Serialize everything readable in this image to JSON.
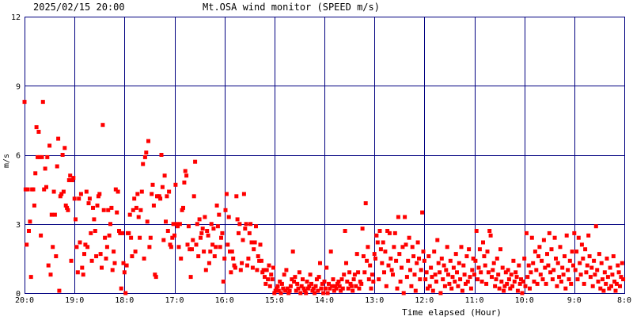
{
  "header": {
    "timestamp": "2025/02/15 20:00",
    "title": "Mt.OSA wind monitor (SPEED m/s)"
  },
  "chart_data": {
    "type": "scatter",
    "title": "Mt.OSA wind monitor (SPEED m/s)",
    "xlabel": "Time elapsed (Hour)",
    "ylabel": "m/s",
    "xlim": [
      0,
      12
    ],
    "ylim": [
      0,
      12
    ],
    "x_axis_reversed_labels": true,
    "x_tick_labels": [
      "20:0",
      "19:0",
      "18:0",
      "17:0",
      "16:0",
      "15:0",
      "14:0",
      "13:0",
      "12:0",
      "11:0",
      "10:0",
      "9:0",
      "8:0"
    ],
    "y_ticks": [
      0,
      3,
      6,
      9,
      12
    ],
    "grid": true,
    "colors": {
      "points": "#ff0000",
      "grid": "#000080",
      "text": "#000000",
      "background": "#ffffff"
    },
    "segments": [
      {
        "start_hour": 0,
        "values": [
          8.3,
          4.5,
          2.1,
          4.5,
          2.7,
          3.1,
          0.7,
          4.5,
          4.5,
          3.8,
          5.2,
          7.2,
          5.9,
          7.0,
          5.9,
          2.5,
          5.9,
          8.3,
          4.5,
          5.4,
          4.6,
          5.9,
          1.2,
          6.4,
          0.8,
          3.4,
          2.0,
          4.4,
          3.4,
          1.6,
          5.5,
          6.7,
          0.1,
          4.2,
          4.3,
          6.0,
          4.4,
          6.3,
          3.8,
          3.7,
          3.6,
          4.9,
          5.1,
          1.4,
          4.9,
          5.0
        ]
      },
      {
        "start_hour": 1,
        "values": [
          4.1,
          3.2,
          2.0,
          0.9,
          4.1,
          2.2,
          4.3,
          1.1,
          0.8,
          1.7,
          2.1,
          4.4,
          2.0,
          3.9,
          4.1,
          2.6,
          1.4,
          3.7,
          3.2,
          2.7,
          1.6,
          3.8,
          4.2,
          4.3,
          1.7,
          1.1,
          7.3,
          3.6,
          2.4,
          1.5,
          2.0,
          3.6,
          2.5,
          3.0,
          3.7,
          1.0,
          1.8,
          1.3,
          4.5,
          3.5,
          4.4,
          2.7,
          2.6,
          0.2,
          2.6,
          1.3
        ]
      },
      {
        "start_hour": 2,
        "values": [
          0.9,
          0.0,
          1.2,
          2.6,
          2.6,
          3.4,
          2.4,
          1.6,
          3.6,
          4.1,
          1.8,
          3.7,
          4.3,
          3.3,
          2.4,
          3.6,
          4.4,
          5.6,
          1.5,
          5.9,
          6.1,
          3.1,
          6.6,
          2.0,
          2.4,
          4.3,
          4.7,
          3.8,
          0.8,
          0.7,
          4.2,
          4.2,
          4.2,
          4.1,
          6.0,
          4.6,
          2.3,
          5.1,
          3.1,
          4.2,
          2.7,
          4.4,
          2.1,
          2.0,
          2.4,
          3.0
        ]
      },
      {
        "start_hour": 3,
        "values": [
          2.5,
          4.7,
          3.0,
          2.9,
          2.0,
          3.0,
          1.5,
          3.6,
          3.7,
          4.8,
          5.3,
          5.1,
          2.1,
          2.9,
          1.9,
          0.7,
          1.9,
          2.3,
          4.2,
          5.7,
          2.1,
          3.0,
          1.6,
          3.2,
          2.4,
          2.6,
          2.8,
          1.8,
          3.3,
          1.0,
          2.7,
          2.5,
          1.3,
          1.8,
          3.0,
          2.1,
          2.8,
          1.6,
          2.0,
          3.8,
          2.9,
          3.4,
          2.0,
          2.4,
          2.6,
          0.5
        ]
      },
      {
        "start_hour": 4,
        "values": [
          1.5,
          3.6,
          4.3,
          2.1,
          3.3,
          1.8,
          0.9,
          1.8,
          1.5,
          1.2,
          1.1,
          4.2,
          3.2,
          2.6,
          3.0,
          1.0,
          1.3,
          2.3,
          4.3,
          2.8,
          3.0,
          1.2,
          1.5,
          2.6,
          3.0,
          2.2,
          1.1,
          1.9,
          2.2,
          2.9,
          1.0,
          1.6,
          1.4,
          2.1,
          1.4,
          0.9,
          1.0,
          0.7,
          0.4,
          1.0,
          0.6,
          1.2,
          0.3,
          0.8,
          0.6,
          1.1
        ]
      },
      {
        "start_hour": 5,
        "values": [
          0.0,
          0.1,
          0.2,
          0.3,
          0.1,
          0.5,
          0.0,
          0.4,
          0.2,
          0.8,
          0.1,
          1.0,
          0.2,
          0.0,
          0.1,
          0.3,
          0.6,
          1.8,
          0.5,
          0.7,
          0.1,
          0.4,
          0.2,
          0.9,
          0.0,
          0.3,
          0.6,
          0.2,
          0.1,
          0.0,
          0.5,
          0.2,
          0.3,
          0.8,
          0.4,
          0.1,
          0.2,
          0.0,
          0.3,
          0.6,
          0.1,
          0.7,
          1.3,
          0.2,
          0.4,
          0.0
        ]
      },
      {
        "start_hour": 6,
        "values": [
          0.5,
          0.2,
          1.1,
          0.0,
          0.4,
          0.2,
          1.8,
          0.3,
          0.6,
          0.1,
          0.3,
          0.2,
          0.4,
          0.5,
          0.3,
          0.1,
          0.6,
          0.2,
          0.8,
          2.7,
          1.3,
          0.5,
          0.2,
          0.9,
          0.4,
          0.3,
          0.1,
          0.6,
          0.8,
          0.3,
          1.7,
          0.9,
          0.2,
          0.5,
          0.4,
          2.8,
          1.6,
          0.9,
          3.9,
          1.4,
          2.0,
          0.6,
          1.2,
          0.2,
          0.8,
          0.5
        ]
      },
      {
        "start_hour": 7,
        "values": [
          1.7,
          1.5,
          2.5,
          2.2,
          0.6,
          2.7,
          1.9,
          1.3,
          2.2,
          0.9,
          1.8,
          0.3,
          2.7,
          1.2,
          2.6,
          1.5,
          1.0,
          0.8,
          2.0,
          2.6,
          1.4,
          0.2,
          3.3,
          1.7,
          0.5,
          1.1,
          2.0,
          0.0,
          3.3,
          2.1,
          0.7,
          1.4,
          2.4,
          1.0,
          0.3,
          2.0,
          1.6,
          0.8,
          0.1,
          1.3,
          2.2,
          1.5,
          0.6,
          1.0,
          3.5,
          1.8
        ]
      },
      {
        "start_hour": 8,
        "values": [
          1.4,
          0.6,
          0.9,
          0.2,
          1.6,
          0.3,
          1.1,
          0.7,
          0.1,
          1.8,
          0.8,
          0.5,
          2.3,
          1.3,
          0.9,
          0.0,
          1.5,
          0.6,
          1.2,
          0.3,
          1.0,
          2.0,
          0.8,
          0.4,
          1.4,
          0.2,
          0.7,
          1.1,
          0.5,
          1.7,
          0.9,
          0.3,
          1.3,
          0.6,
          2.0,
          0.1,
          1.2,
          0.8,
          0.4,
          1.6,
          0.5,
          1.9,
          0.7,
          0.2,
          1.0,
          1.5
        ]
      },
      {
        "start_hour": 9,
        "values": [
          0.8,
          1.4,
          2.7,
          0.6,
          1.1,
          1.9,
          0.9,
          0.5,
          2.2,
          1.6,
          1.2,
          0.4,
          1.8,
          0.9,
          2.7,
          2.5,
          0.7,
          1.0,
          1.3,
          0.3,
          0.6,
          1.5,
          0.8,
          0.2,
          1.9,
          0.5,
          1.1,
          0.1,
          0.3,
          0.9,
          0.4,
          1.0,
          0.6,
          0.2,
          0.8,
          0.3,
          1.4,
          0.5,
          0.9,
          0.7,
          0.1,
          1.2,
          0.4,
          0.6,
          0.0,
          0.5
        ]
      },
      {
        "start_hour": 10,
        "values": [
          1.5,
          0.3,
          2.6,
          0.7,
          1.2,
          0.2,
          0.9,
          2.4,
          1.3,
          0.5,
          1.8,
          1.0,
          0.4,
          1.6,
          2.0,
          0.8,
          1.4,
          0.6,
          2.3,
          1.1,
          0.4,
          1.7,
          1.2,
          2.6,
          0.9,
          1.9,
          0.6,
          1.0,
          2.4,
          1.5,
          0.3,
          1.3,
          0.7,
          2.0,
          0.5,
          1.1,
          0.8,
          1.6,
          0.2,
          2.5,
          1.0,
          0.6,
          1.4,
          0.4,
          1.8,
          1.2
        ]
      },
      {
        "start_hour": 11,
        "values": [
          2.6,
          1.0,
          1.8,
          0.6,
          2.4,
          1.3,
          0.8,
          2.1,
          1.5,
          0.4,
          1.9,
          0.9,
          1.2,
          2.5,
          1.6,
          0.7,
          1.1,
          0.3,
          1.4,
          0.8,
          2.9,
          1.0,
          0.5,
          1.7,
          0.2,
          1.3,
          0.6,
          0.1,
          0.9,
          0.4,
          1.5,
          0.7,
          0.2,
          1.1,
          0.3,
          0.8,
          1.6,
          0.5,
          0.1,
          0.4,
          1.2,
          0.9,
          0.3,
          0.7,
          1.3,
          0.6
        ]
      }
    ]
  }
}
